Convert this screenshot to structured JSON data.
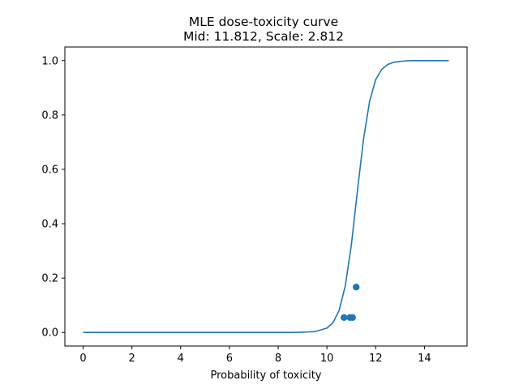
{
  "chart_data": {
    "type": "line",
    "title": "MLE dose-toxicity curve",
    "subtitle": "Mid: 11.812, Scale: 2.812",
    "xlabel": "Probability of toxicity",
    "ylabel": "",
    "xlim": [
      -0.75,
      15.75
    ],
    "ylim": [
      -0.05,
      1.05
    ],
    "x_ticks": [
      0,
      2,
      4,
      6,
      8,
      10,
      12,
      14
    ],
    "y_ticks": [
      0.0,
      0.2,
      0.4,
      0.6,
      0.8,
      1.0
    ],
    "y_tick_labels": [
      "0.0",
      "0.2",
      "0.4",
      "0.6",
      "0.8",
      "1.0"
    ],
    "grid": false,
    "line_color": "#1f77b4",
    "series": [
      {
        "type": "line",
        "x": [
          0,
          1,
          2,
          3,
          4,
          5,
          6,
          7,
          8,
          8.5,
          9,
          9.5,
          10,
          10.25,
          10.5,
          10.75,
          11,
          11.25,
          11.5,
          11.75,
          12,
          12.25,
          12.5,
          12.75,
          13,
          13.25,
          13.5,
          13.75,
          14,
          14.5,
          15
        ],
        "y": [
          0.0,
          0.0,
          0.0,
          0.0,
          0.0,
          0.0,
          0.0,
          0.0,
          0.0,
          0.0,
          0.001,
          0.003,
          0.016,
          0.036,
          0.081,
          0.17,
          0.32,
          0.52,
          0.71,
          0.85,
          0.93,
          0.968,
          0.986,
          0.994,
          0.997,
          0.999,
          1.0,
          1.0,
          1.0,
          1.0,
          1.0
        ]
      },
      {
        "type": "scatter",
        "x": [
          10.7,
          10.95,
          11.05,
          11.2
        ],
        "y": [
          0.055,
          0.055,
          0.055,
          0.167
        ]
      }
    ]
  }
}
